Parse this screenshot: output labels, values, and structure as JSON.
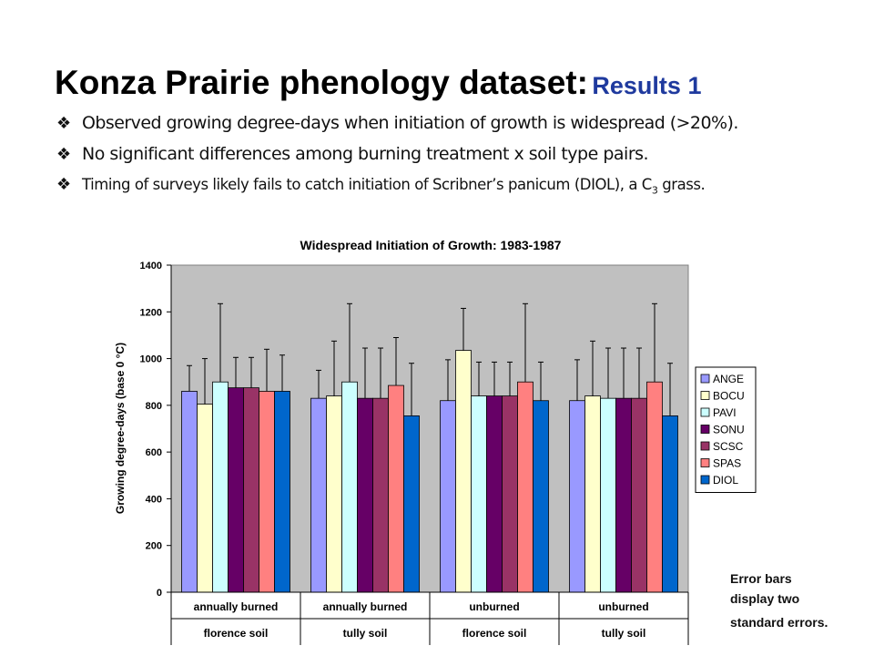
{
  "header": {
    "title_main": "Konza Prairie phenology dataset:",
    "title_sub": "Results 1",
    "bullet_glyph": "❖",
    "bullets": [
      "Observed growing degree-days when initiation of growth is widespread (>20%).",
      "No significant differences among burning treatment x soil type pairs.",
      "Timing of surveys likely fails to catch initiation of Scribner’s panicum (DIOL), a C",
      "3",
      " grass."
    ]
  },
  "note": {
    "lines": [
      "Error bars",
      "display two",
      "standard errors."
    ]
  },
  "chart_data": {
    "type": "bar",
    "title": "Widespread Initiation of Growth: 1983-1987",
    "ylabel": "Growing degree-days (base 0    °C)",
    "ylim": [
      0,
      1400
    ],
    "yticks": [
      0,
      200,
      400,
      600,
      800,
      1000,
      1200,
      1400
    ],
    "grid": false,
    "legend_position": "right",
    "categories": [
      [
        "annually burned",
        "florence soil"
      ],
      [
        "annually burned",
        "tully soil"
      ],
      [
        "unburned",
        "florence soil"
      ],
      [
        "unburned",
        "tully soil"
      ]
    ],
    "series": [
      {
        "name": "ANGE",
        "color": "#9999ff",
        "values": [
          860,
          830,
          820,
          820
        ],
        "err": [
          110,
          120,
          175,
          175
        ]
      },
      {
        "name": "BOCU",
        "color": "#ffffcc",
        "values": [
          805,
          840,
          1035,
          840
        ],
        "err": [
          195,
          235,
          180,
          235
        ]
      },
      {
        "name": "PAVI",
        "color": "#ccffff",
        "values": [
          900,
          900,
          840,
          830
        ],
        "err": [
          335,
          335,
          145,
          215
        ]
      },
      {
        "name": "SONU",
        "color": "#660066",
        "values": [
          875,
          830,
          840,
          830
        ],
        "err": [
          130,
          215,
          145,
          215
        ]
      },
      {
        "name": "SCSC",
        "color": "#993366",
        "values": [
          875,
          830,
          840,
          830
        ],
        "err": [
          130,
          215,
          145,
          215
        ]
      },
      {
        "name": "SPAS",
        "color": "#ff8080",
        "values": [
          860,
          885,
          900,
          900
        ],
        "err": [
          180,
          205,
          335,
          335
        ]
      },
      {
        "name": "DIOL",
        "color": "#0066cc",
        "values": [
          860,
          755,
          820,
          755
        ],
        "err": [
          155,
          225,
          165,
          225
        ]
      }
    ],
    "plot_bg": "#c0c0c0"
  }
}
